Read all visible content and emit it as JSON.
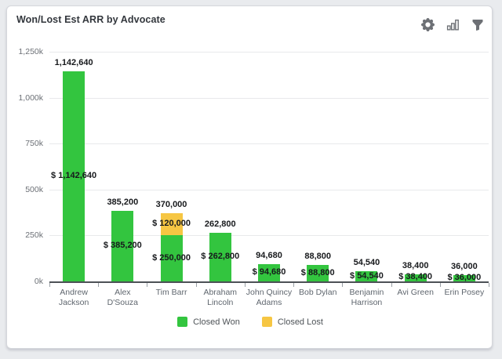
{
  "window": {
    "title": "Won/Lost Est ARR by Advocate"
  },
  "toolbar": {
    "icon_color": "#6d7075",
    "icons": [
      "settings-gear",
      "chart-type",
      "filter-funnel"
    ]
  },
  "chart_data": {
    "type": "bar",
    "stacked": true,
    "title": "Won/Lost Est ARR by Advocate",
    "grid": true,
    "legend_position": "bottom",
    "y_axis": {
      "max": 1250000,
      "ticks": [
        {
          "label": "0k",
          "value": 0
        },
        {
          "label": "250k",
          "value": 250000
        },
        {
          "label": "500k",
          "value": 500000
        },
        {
          "label": "750k",
          "value": 750000
        },
        {
          "label": "1,000k",
          "value": 1000000
        },
        {
          "label": "1,250k",
          "value": 1250000
        }
      ]
    },
    "categories": [
      {
        "name": "Andrew Jackson",
        "lines": [
          "Andrew",
          "Jackson"
        ],
        "total": 1142640,
        "total_label": "1,142,640"
      },
      {
        "name": "Alex D'Souza",
        "lines": [
          "Alex D'Souza"
        ],
        "total": 385200,
        "total_label": "385,200"
      },
      {
        "name": "Tim Barr",
        "lines": [
          "Tim Barr"
        ],
        "total": 370000,
        "total_label": "370,000"
      },
      {
        "name": "Abraham Lincoln",
        "lines": [
          "Abraham",
          "Lincoln"
        ],
        "total": 262800,
        "total_label": "262,800"
      },
      {
        "name": "John Quincy Adams",
        "lines": [
          "John Quincy",
          "Adams"
        ],
        "total": 94680,
        "total_label": "94,680"
      },
      {
        "name": "Bob Dylan",
        "lines": [
          "Bob Dylan"
        ],
        "total": 88800,
        "total_label": "88,800"
      },
      {
        "name": "Benjamin Harrison",
        "lines": [
          "Benjamin",
          "Harrison"
        ],
        "total": 54540,
        "total_label": "54,540"
      },
      {
        "name": "Avi Green",
        "lines": [
          "Avi Green"
        ],
        "total": 38400,
        "total_label": "38,400"
      },
      {
        "name": "Erin Posey",
        "lines": [
          "Erin Posey"
        ],
        "total": 36000,
        "total_label": "36,000"
      }
    ],
    "series": [
      {
        "name": "Closed Won",
        "color": "#33c53f",
        "values": [
          1142640,
          385200,
          250000,
          262800,
          94680,
          88800,
          54540,
          38400,
          36000
        ],
        "labels": [
          "$ 1,142,640",
          "$ 385,200",
          "$ 250,000",
          "$ 262,800",
          "$ 94,680",
          "$ 88,800",
          "$ 54,540",
          "$ 38,400",
          "$ 36,000"
        ]
      },
      {
        "name": "Closed Lost",
        "color": "#f6c643",
        "values": [
          0,
          0,
          120000,
          0,
          0,
          0,
          0,
          0,
          0
        ],
        "labels": [
          "",
          "",
          "$ 120,000",
          "",
          "",
          "",
          "",
          "",
          ""
        ]
      }
    ]
  }
}
